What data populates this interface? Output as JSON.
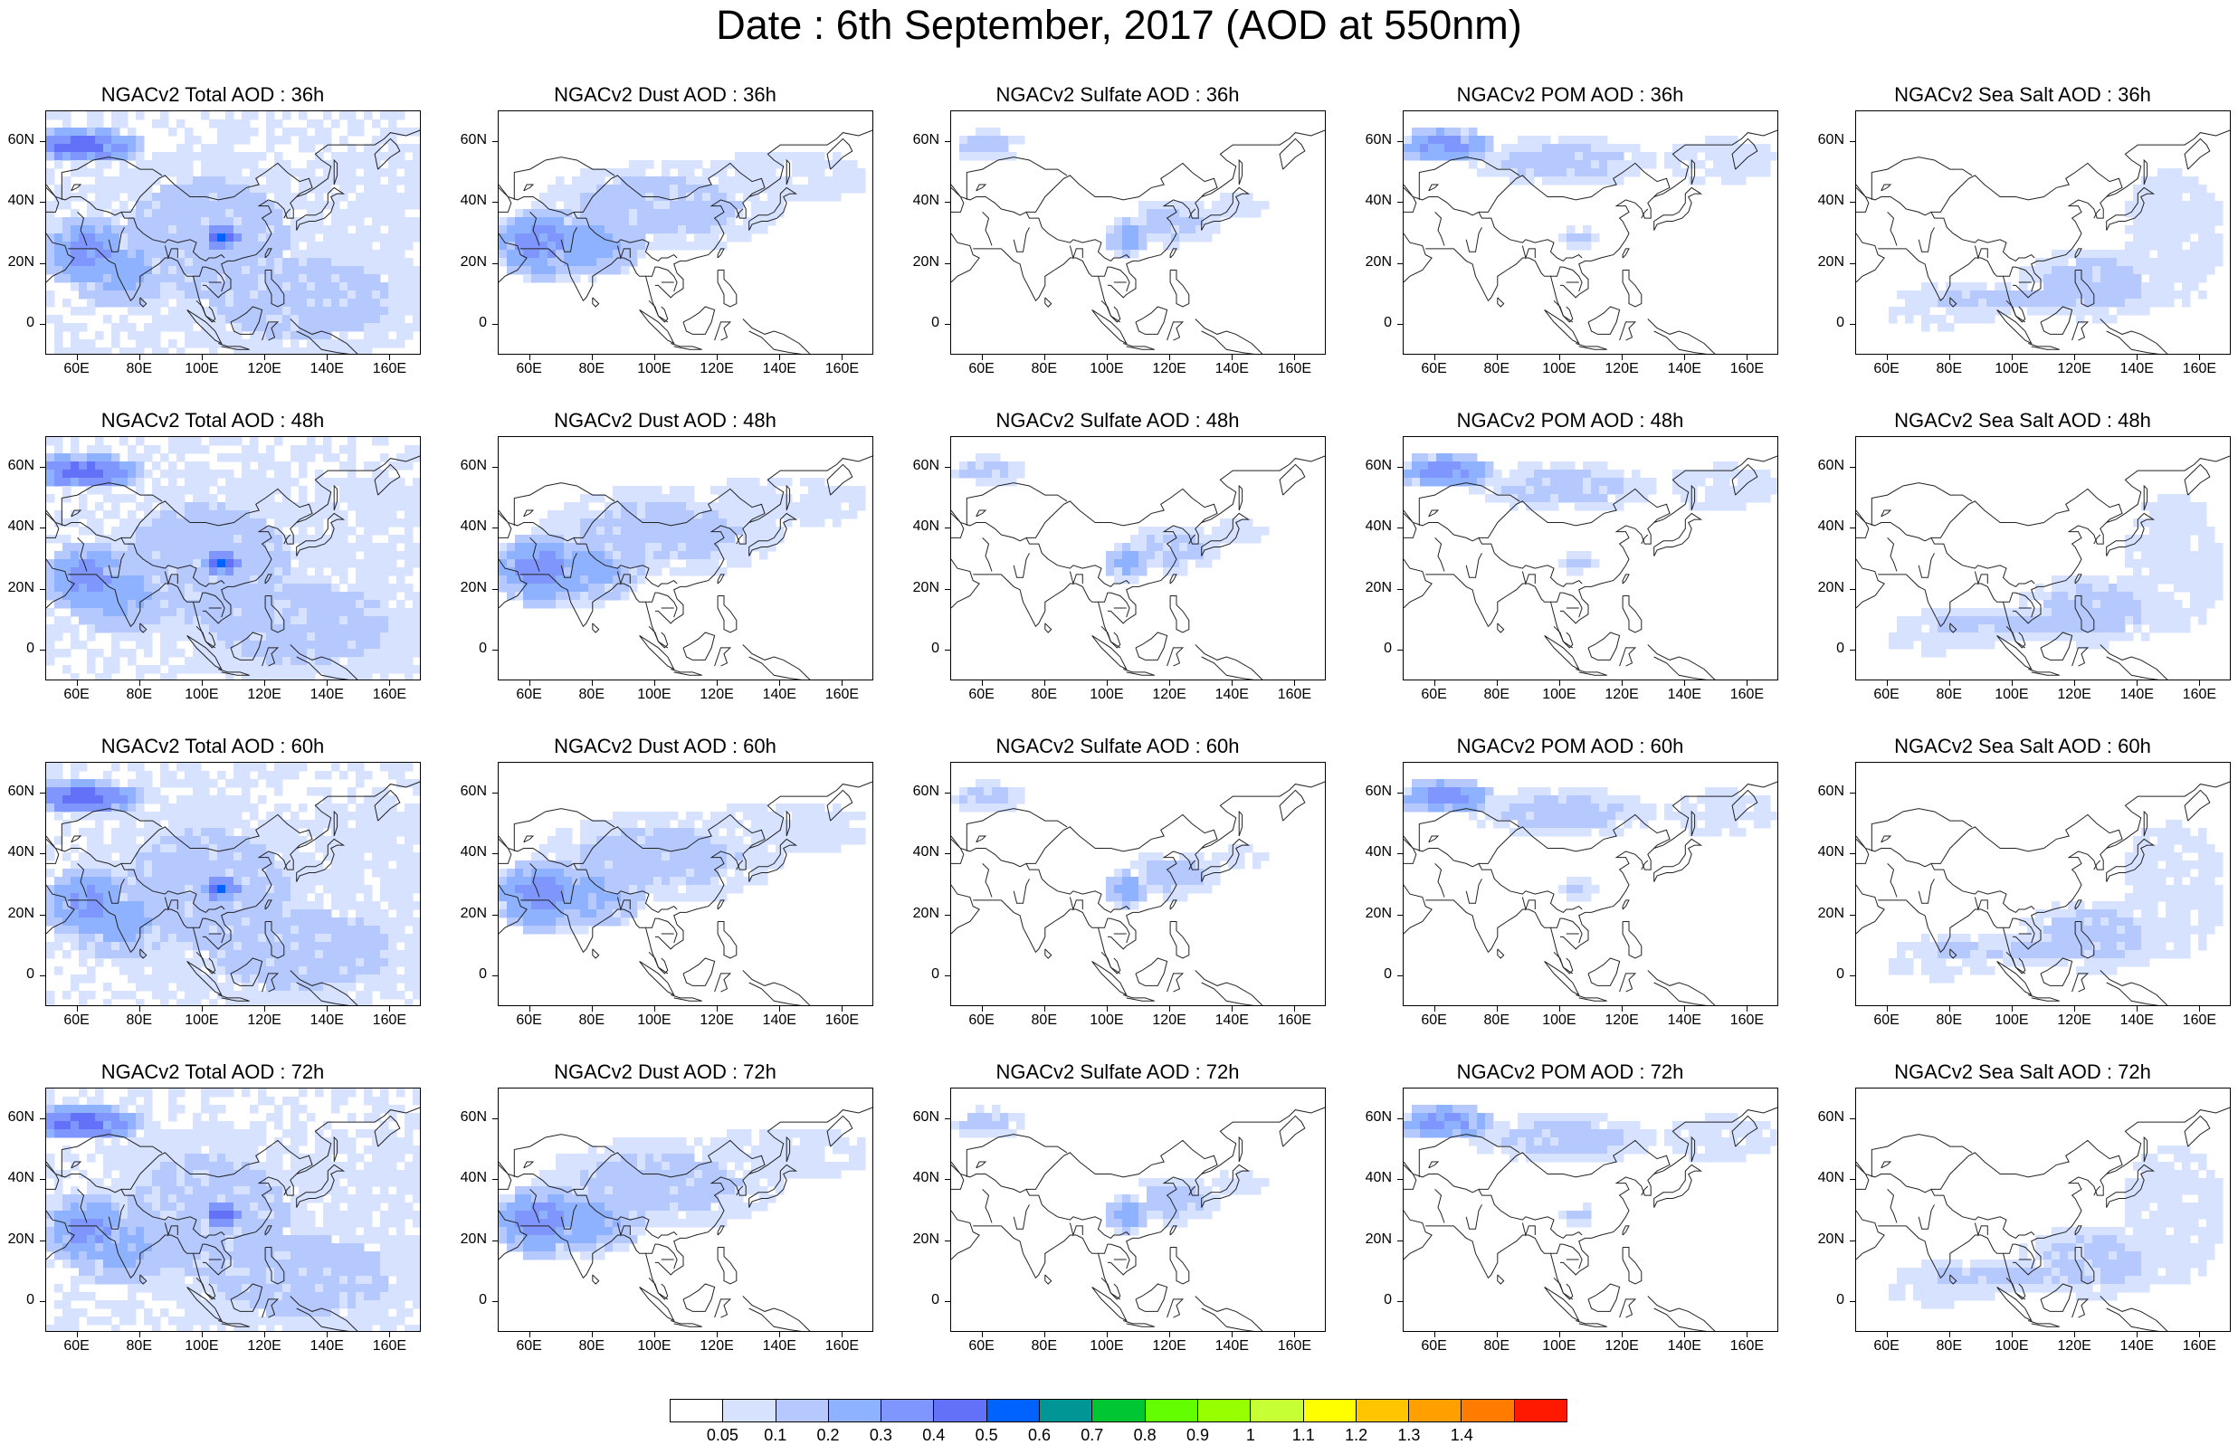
{
  "title": "Date : 6th September, 2017 (AOD at 550nm)",
  "columns": [
    "Total",
    "Dust",
    "Sulfate",
    "POM",
    "Sea Salt"
  ],
  "forecast_hours": [
    "36h",
    "48h",
    "60h",
    "72h"
  ],
  "panel_titles": [
    [
      "NGACv2 Total AOD : 36h",
      "NGACv2 Dust AOD : 36h",
      "NGACv2 Sulfate AOD : 36h",
      "NGACv2 POM AOD : 36h",
      "NGACv2 Sea Salt AOD : 36h"
    ],
    [
      "NGACv2 Total AOD : 48h",
      "NGACv2 Dust AOD : 48h",
      "NGACv2 Sulfate AOD : 48h",
      "NGACv2 POM AOD : 48h",
      "NGACv2 Sea Salt AOD : 48h"
    ],
    [
      "NGACv2 Total AOD : 60h",
      "NGACv2 Dust AOD : 60h",
      "NGACv2 Sulfate AOD : 60h",
      "NGACv2 POM AOD : 60h",
      "NGACv2 Sea Salt AOD : 60h"
    ],
    [
      "NGACv2 Total AOD : 72h",
      "NGACv2 Dust AOD : 72h",
      "NGACv2 Sulfate AOD : 72h",
      "NGACv2 POM AOD : 72h",
      "NGACv2 Sea Salt  AOD : 72h"
    ]
  ],
  "lat_labels": [
    "60N",
    "40N",
    "20N",
    "0"
  ],
  "lat_values": [
    60,
    40,
    20,
    0
  ],
  "lon_labels": [
    "60E",
    "80E",
    "100E",
    "120E",
    "140E",
    "160E"
  ],
  "lon_values": [
    60,
    80,
    100,
    120,
    140,
    160
  ],
  "map_extent": {
    "lon": [
      50,
      170
    ],
    "lat": [
      -10,
      70
    ]
  },
  "colorbar": {
    "colors": [
      "#ffffff",
      "#d6e2ff",
      "#b5c9ff",
      "#8eb2ff",
      "#7f96ff",
      "#6370f8",
      "#0063ff",
      "#009696",
      "#00c633",
      "#63ff00",
      "#96ff00",
      "#c6ff33",
      "#ffff00",
      "#ffc600",
      "#ffa000",
      "#ff7c00",
      "#ff1900"
    ],
    "labels": [
      "0.05",
      "0.1",
      "0.2",
      "0.3",
      "0.4",
      "0.5",
      "0.6",
      "0.7",
      "0.8",
      "0.9",
      "1",
      "1.1",
      "1.2",
      "1.3",
      "1.4"
    ]
  }
}
